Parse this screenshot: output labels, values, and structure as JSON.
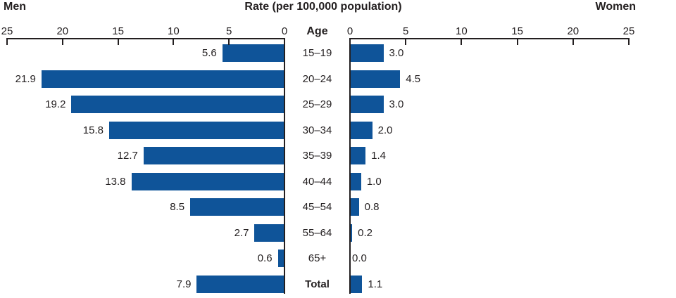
{
  "chart_data": {
    "type": "bar",
    "subtype": "bilateral-population-pyramid",
    "title": "Rate (per 100,000 population)",
    "left_series_label": "Men",
    "right_series_label": "Women",
    "category_axis_label": "Age",
    "categories": [
      "15–19",
      "20–24",
      "25–29",
      "30–34",
      "35–39",
      "40–44",
      "45–54",
      "55–64",
      "65+",
      "Total"
    ],
    "series": [
      {
        "name": "Men",
        "side": "left",
        "values": [
          5.6,
          21.9,
          19.2,
          15.8,
          12.7,
          13.8,
          8.5,
          2.7,
          0.6,
          7.9
        ]
      },
      {
        "name": "Women",
        "side": "right",
        "values": [
          3.0,
          4.5,
          3.0,
          2.0,
          1.4,
          1.0,
          0.8,
          0.2,
          0.0,
          1.1
        ]
      }
    ],
    "rows": [
      {
        "age": "15–19",
        "bold": false,
        "men_value": 5.6,
        "men_label": "5.6",
        "women_value": 3.0,
        "women_label": "3.0"
      },
      {
        "age": "20–24",
        "bold": false,
        "men_value": 21.9,
        "men_label": "21.9",
        "women_value": 4.5,
        "women_label": "4.5"
      },
      {
        "age": "25–29",
        "bold": false,
        "men_value": 19.2,
        "men_label": "19.2",
        "women_value": 3.0,
        "women_label": "3.0"
      },
      {
        "age": "30–34",
        "bold": false,
        "men_value": 15.8,
        "men_label": "15.8",
        "women_value": 2.0,
        "women_label": "2.0"
      },
      {
        "age": "35–39",
        "bold": false,
        "men_value": 12.7,
        "men_label": "12.7",
        "women_value": 1.4,
        "women_label": "1.4"
      },
      {
        "age": "40–44",
        "bold": false,
        "men_value": 13.8,
        "men_label": "13.8",
        "women_value": 1.0,
        "women_label": "1.0"
      },
      {
        "age": "45–54",
        "bold": false,
        "men_value": 8.5,
        "men_label": "8.5",
        "women_value": 0.8,
        "women_label": "0.8"
      },
      {
        "age": "55–64",
        "bold": false,
        "men_value": 2.7,
        "men_label": "2.7",
        "women_value": 0.2,
        "women_label": "0.2"
      },
      {
        "age": "65+",
        "bold": false,
        "men_value": 0.6,
        "men_label": "0.6",
        "women_value": 0.0,
        "women_label": "0.0"
      },
      {
        "age": "Total",
        "bold": true,
        "men_value": 7.9,
        "men_label": "7.9",
        "women_value": 1.1,
        "women_label": "1.1"
      }
    ],
    "value_axis_range": [
      0,
      25
    ],
    "value_axis_ticks": [
      0,
      5,
      10,
      15,
      20,
      25
    ],
    "men_axis_tick_order": [
      "25",
      "20",
      "15",
      "10",
      "5",
      "0"
    ],
    "women_axis_tick_order": [
      "0",
      "5",
      "10",
      "15",
      "20",
      "25"
    ],
    "grid": false,
    "bar_color": "#0F5499",
    "axis_color": "#231F20"
  }
}
